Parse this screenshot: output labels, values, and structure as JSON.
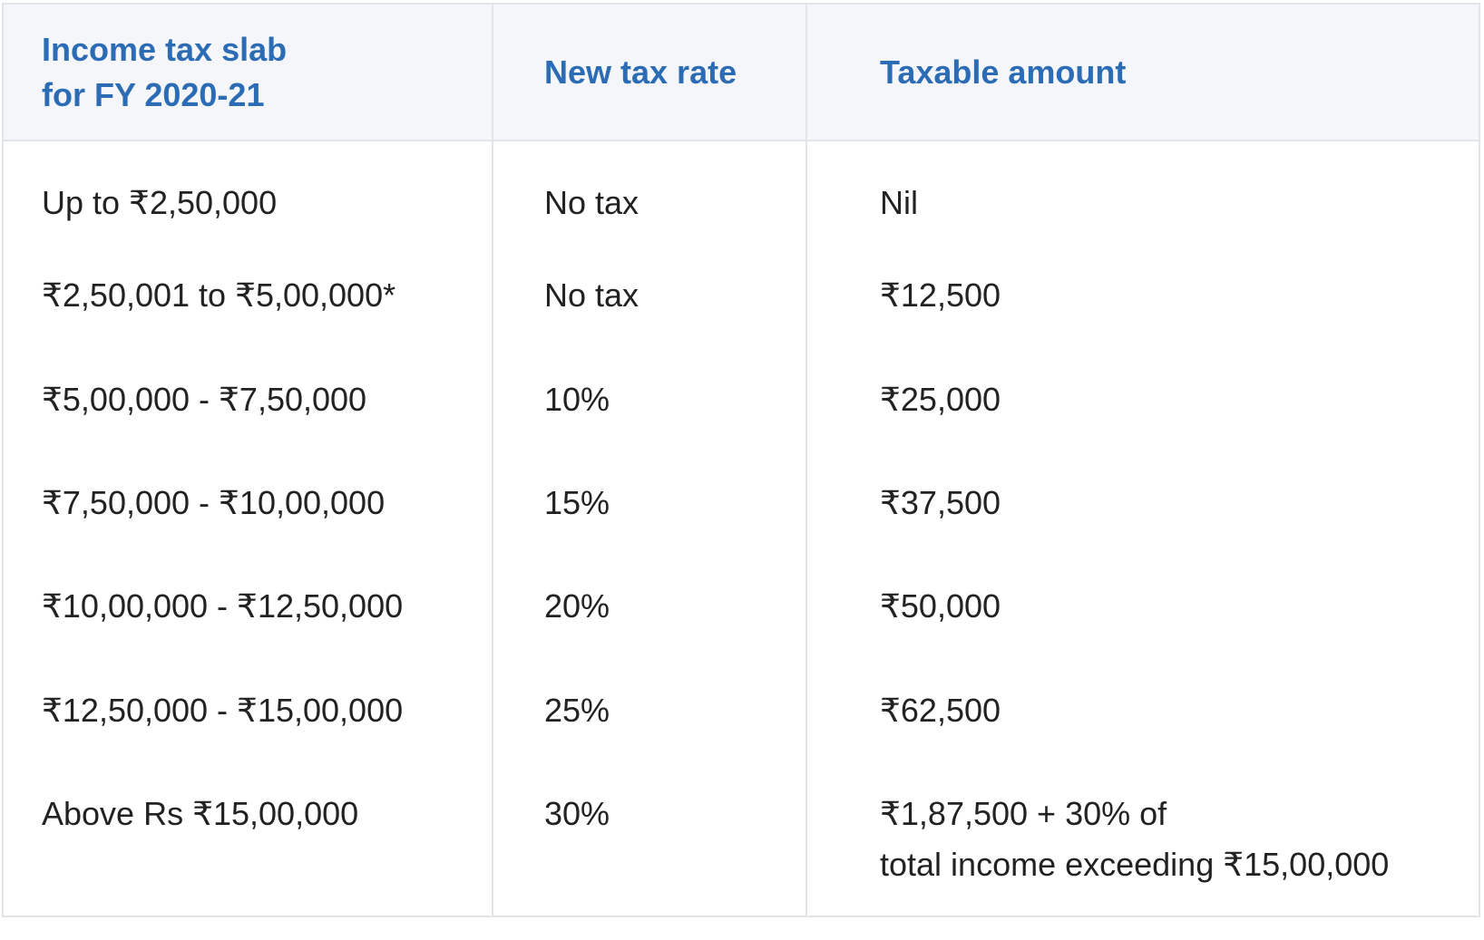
{
  "table": {
    "headers": {
      "slab_line1": "Income tax slab",
      "slab_line2": "for FY 2020-21",
      "rate": "New tax rate",
      "amount": "Taxable amount"
    },
    "rows": [
      {
        "slab": "Up to ₹2,50,000",
        "rate": "No tax",
        "amount": "Nil"
      },
      {
        "slab": "₹2,50,001 to ₹5,00,000*",
        "rate": "No tax",
        "amount": "₹12,500"
      },
      {
        "slab": "₹5,00,000 - ₹7,50,000",
        "rate": "10%",
        "amount": "₹25,000"
      },
      {
        "slab": "₹7,50,000 - ₹10,00,000",
        "rate": "15%",
        "amount": "₹37,500"
      },
      {
        "slab": "₹10,00,000 - ₹12,50,000",
        "rate": "20%",
        "amount": "₹50,000"
      },
      {
        "slab": "₹12,50,000 - ₹15,00,000",
        "rate": "25%",
        "amount": "₹62,500"
      },
      {
        "slab": "Above Rs ₹15,00,000",
        "rate": "30%",
        "amount_line1": "₹1,87,500 + 30% of",
        "amount_line2": "total income exceeding ₹15,00,000"
      }
    ]
  },
  "colors": {
    "header_text": "#2b6cb4",
    "header_bg": "#f4f6f9",
    "body_text": "#222222",
    "border": "#e2e5e8"
  }
}
